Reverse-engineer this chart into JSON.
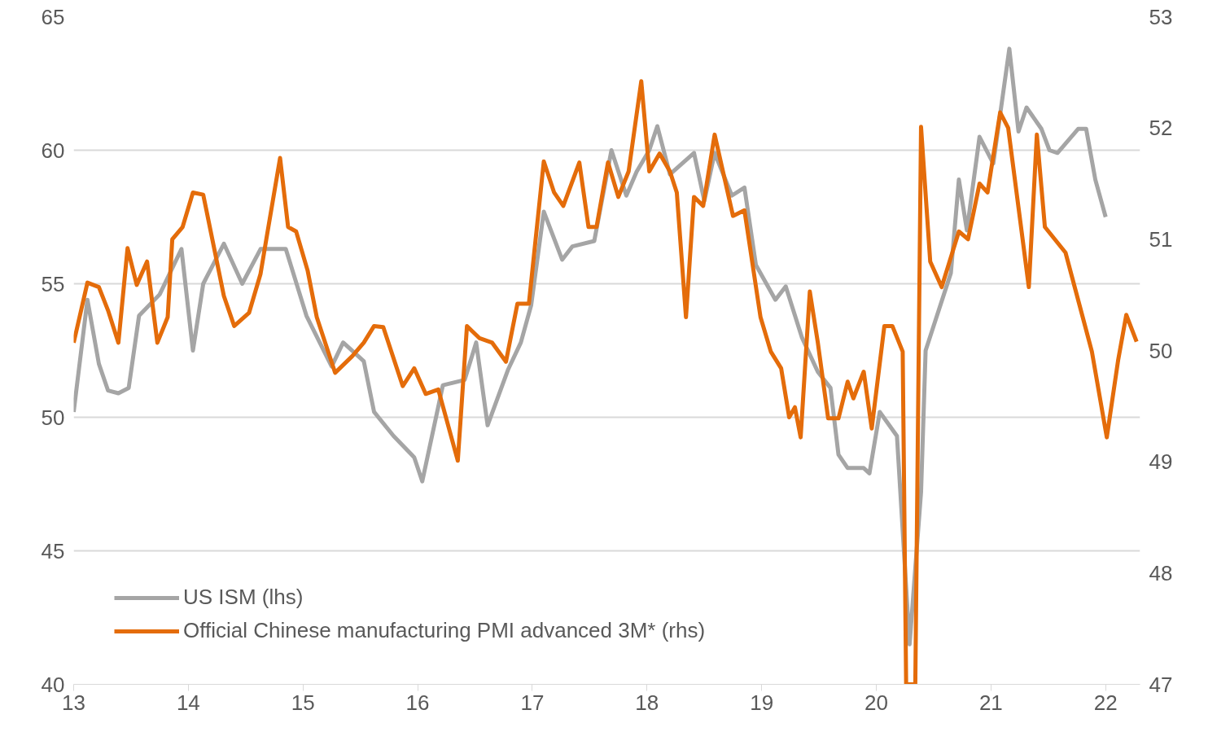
{
  "chart_data": {
    "type": "line",
    "xlim": [
      13,
      22.3
    ],
    "xticks": [
      13,
      14,
      15,
      16,
      17,
      18,
      19,
      20,
      21,
      22
    ],
    "ylim": [
      40,
      65
    ],
    "yticks": [
      40,
      45,
      50,
      55,
      60,
      65
    ],
    "y2lim": [
      47,
      53
    ],
    "y2ticks": [
      47,
      48,
      49,
      50,
      51,
      52,
      53
    ],
    "grid": "y",
    "legend": "bottom left",
    "marker": "none",
    "line_style": "solid",
    "series": [
      {
        "name": "US ISM (lhs)",
        "color": "#a5a5a5",
        "x": [
          13.0,
          13.12,
          13.22,
          13.3,
          13.39,
          13.48,
          13.57,
          13.75,
          13.94,
          14.04,
          14.13,
          14.31,
          14.47,
          14.63,
          14.85,
          15.03,
          15.25,
          15.35,
          15.53,
          15.62,
          15.79,
          15.97,
          16.04,
          16.22,
          16.41,
          16.51,
          16.61,
          16.79,
          16.9,
          16.99,
          17.1,
          17.26,
          17.35,
          17.54,
          17.69,
          17.82,
          17.91,
          18.02,
          18.09,
          18.2,
          18.41,
          18.5,
          18.59,
          18.74,
          18.85,
          18.95,
          19.12,
          19.21,
          19.35,
          19.49,
          19.6,
          19.67,
          19.75,
          19.89,
          19.94,
          20.03,
          20.18,
          20.29,
          20.39,
          20.43,
          20.65,
          20.72,
          20.79,
          20.9,
          21.02,
          21.16,
          21.24,
          21.31,
          21.44,
          21.51,
          21.58,
          21.76,
          21.83,
          21.91,
          22.0
        ],
        "values": [
          50.2,
          54.4,
          52.0,
          51.0,
          50.9,
          51.1,
          53.8,
          54.6,
          56.3,
          52.5,
          55.0,
          56.5,
          55.0,
          56.3,
          56.3,
          53.8,
          51.9,
          52.8,
          52.1,
          50.2,
          49.3,
          48.5,
          47.6,
          51.2,
          51.4,
          52.8,
          49.7,
          51.8,
          52.8,
          54.2,
          57.7,
          55.9,
          56.4,
          56.6,
          60.0,
          58.3,
          59.2,
          60.0,
          60.9,
          59.1,
          59.9,
          58.1,
          59.9,
          58.3,
          58.6,
          55.7,
          54.4,
          54.9,
          53.0,
          51.7,
          51.1,
          48.6,
          48.1,
          48.1,
          47.9,
          50.2,
          49.3,
          41.5,
          47.2,
          52.5,
          55.4,
          58.9,
          57.0,
          60.5,
          59.5,
          63.8,
          60.7,
          61.6,
          60.8,
          60.0,
          59.9,
          60.8,
          60.8,
          58.9,
          57.5
        ]
      },
      {
        "name": "Official Chinese manufacturing PMI advanced 3M* (rhs)",
        "color": "#e46c0a",
        "axis": "y2",
        "x": [
          13.0,
          13.12,
          13.22,
          13.3,
          13.39,
          13.47,
          13.55,
          13.64,
          13.73,
          13.82,
          13.86,
          13.95,
          14.04,
          14.13,
          14.31,
          14.4,
          14.53,
          14.63,
          14.68,
          14.8,
          14.87,
          14.94,
          15.04,
          15.12,
          15.28,
          15.43,
          15.53,
          15.62,
          15.7,
          15.87,
          15.97,
          16.07,
          16.18,
          16.35,
          16.43,
          16.54,
          16.65,
          16.77,
          16.87,
          16.97,
          17.1,
          17.19,
          17.27,
          17.41,
          17.49,
          17.56,
          17.66,
          17.75,
          17.84,
          17.95,
          18.02,
          18.11,
          18.2,
          18.26,
          18.34,
          18.41,
          18.49,
          18.59,
          18.75,
          18.85,
          18.99,
          19.08,
          19.17,
          19.24,
          19.29,
          19.34,
          19.42,
          19.49,
          19.58,
          19.67,
          19.75,
          19.8,
          19.89,
          19.96,
          20.07,
          20.14,
          20.23,
          20.26,
          20.34,
          20.39,
          20.47,
          20.57,
          20.72,
          20.8,
          20.9,
          20.97,
          21.08,
          21.15,
          21.33,
          21.4,
          21.47,
          21.65,
          21.8,
          21.88,
          22.01,
          22.11,
          22.18,
          22.27
        ],
        "values": [
          50.07,
          50.61,
          50.57,
          50.36,
          50.07,
          50.92,
          50.59,
          50.8,
          50.07,
          50.3,
          51.0,
          51.11,
          51.42,
          51.4,
          50.49,
          50.22,
          50.34,
          50.69,
          51.0,
          51.73,
          51.11,
          51.07,
          50.72,
          50.3,
          49.8,
          49.95,
          50.07,
          50.22,
          50.21,
          49.68,
          49.84,
          49.61,
          49.65,
          49.01,
          50.22,
          50.11,
          50.07,
          49.9,
          50.42,
          50.42,
          51.7,
          51.42,
          51.3,
          51.69,
          51.11,
          51.11,
          51.69,
          51.38,
          51.61,
          52.42,
          51.61,
          51.77,
          51.61,
          51.42,
          50.3,
          51.38,
          51.3,
          51.94,
          51.21,
          51.26,
          50.3,
          49.99,
          49.84,
          49.4,
          49.49,
          49.22,
          50.53,
          50.07,
          49.39,
          49.39,
          49.72,
          49.57,
          49.81,
          49.3,
          50.22,
          50.22,
          49.99,
          47.0,
          47.0,
          52.01,
          50.8,
          50.57,
          51.07,
          51.0,
          51.5,
          51.42,
          52.14,
          52.0,
          50.57,
          51.94,
          51.11,
          50.88,
          50.3,
          49.99,
          49.22,
          49.92,
          50.32,
          50.08
        ]
      }
    ]
  }
}
